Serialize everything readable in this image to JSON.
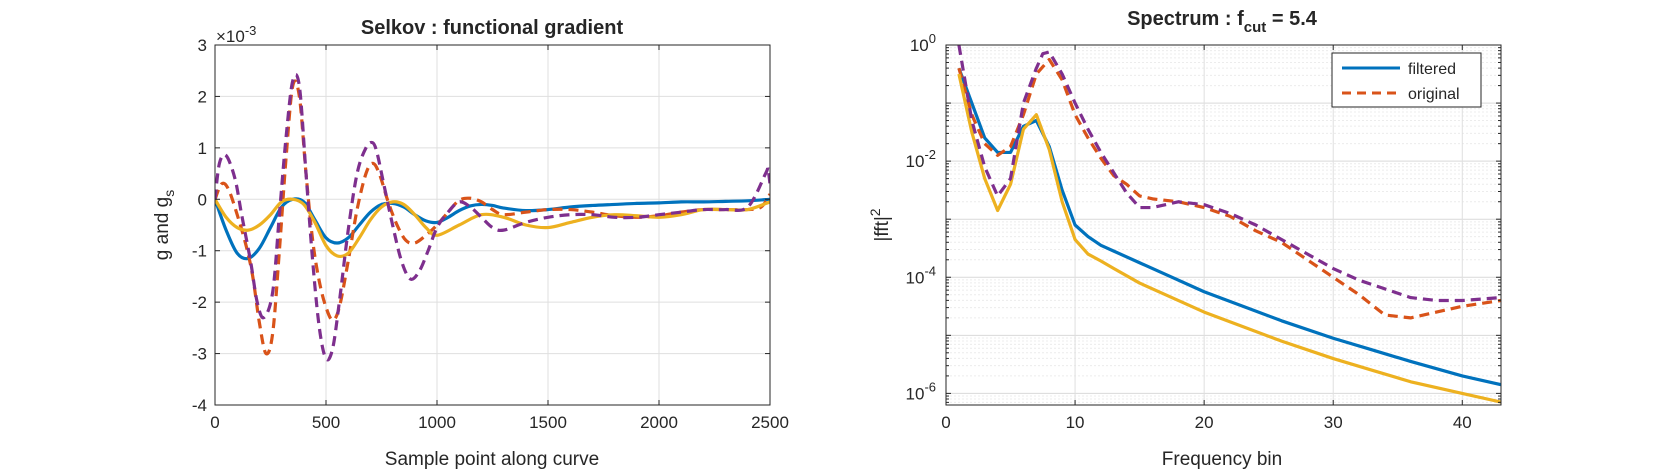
{
  "chart_data": [
    {
      "type": "line",
      "title": "Selkov : functional gradient",
      "xlabel": "Sample point along curve",
      "ylabel_main": "g and g",
      "ylabel_sub": "s",
      "y_exponent_prefix": "×10",
      "y_exponent": "-3",
      "xlim": [
        0,
        2500
      ],
      "ylim": [
        -4,
        3
      ],
      "xticks": [
        0,
        500,
        1000,
        1500,
        2000,
        2500
      ],
      "yticks": [
        -4,
        -3,
        -2,
        -1,
        0,
        1,
        2,
        3
      ],
      "xtick_labels": [
        "0",
        "500",
        "1000",
        "1500",
        "2000",
        "2500"
      ],
      "ytick_labels": [
        "-4",
        "-3",
        "-2",
        "-1",
        "0",
        "1",
        "2",
        "3"
      ],
      "grid": true,
      "series": [
        {
          "color": "#0072BD",
          "style": "solid",
          "x": [
            0,
            50,
            100,
            150,
            200,
            250,
            300,
            350,
            400,
            450,
            500,
            550,
            600,
            650,
            700,
            750,
            800,
            850,
            900,
            950,
            1000,
            1050,
            1100,
            1150,
            1200,
            1250,
            1300,
            1400,
            1500,
            1600,
            1700,
            1800,
            1900,
            2000,
            2100,
            2200,
            2300,
            2400,
            2500
          ],
          "y": [
            0,
            -0.6,
            -1.05,
            -1.15,
            -0.95,
            -0.55,
            -0.15,
            0,
            -0.05,
            -0.4,
            -0.75,
            -0.85,
            -0.75,
            -0.5,
            -0.25,
            -0.1,
            -0.08,
            -0.15,
            -0.3,
            -0.42,
            -0.45,
            -0.35,
            -0.22,
            -0.13,
            -0.1,
            -0.12,
            -0.17,
            -0.22,
            -0.2,
            -0.15,
            -0.12,
            -0.1,
            -0.08,
            -0.07,
            -0.05,
            -0.05,
            -0.04,
            -0.03,
            0
          ]
        },
        {
          "color": "#D95319",
          "style": "dashed",
          "x": [
            0,
            30,
            60,
            100,
            140,
            170,
            200,
            230,
            260,
            290,
            320,
            350,
            380,
            410,
            440,
            470,
            500,
            530,
            560,
            600,
            640,
            680,
            710,
            740,
            780,
            820,
            860,
            900,
            950,
            1000,
            1050,
            1100,
            1150,
            1200,
            1250,
            1300,
            1400,
            1500,
            1600,
            1700,
            1800,
            1900,
            2000,
            2100,
            2200,
            2300,
            2400,
            2460,
            2500
          ],
          "y": [
            0,
            0.3,
            0.2,
            -0.3,
            -0.9,
            -1.5,
            -2.4,
            -3.0,
            -2.6,
            -1.0,
            0.8,
            2.2,
            2.0,
            0.5,
            -0.8,
            -1.6,
            -2.1,
            -2.35,
            -2.1,
            -1.2,
            -0.2,
            0.5,
            0.7,
            0.5,
            -0.05,
            -0.5,
            -0.8,
            -0.85,
            -0.7,
            -0.5,
            -0.25,
            -0.02,
            0.02,
            -0.05,
            -0.2,
            -0.3,
            -0.25,
            -0.2,
            -0.2,
            -0.25,
            -0.32,
            -0.35,
            -0.32,
            -0.25,
            -0.2,
            -0.2,
            -0.2,
            -0.15,
            0.1
          ]
        },
        {
          "color": "#EDB120",
          "style": "solid",
          "x": [
            0,
            50,
            100,
            150,
            200,
            250,
            300,
            350,
            400,
            450,
            500,
            550,
            600,
            650,
            700,
            750,
            800,
            850,
            900,
            950,
            1000,
            1100,
            1200,
            1300,
            1400,
            1500,
            1600,
            1700,
            1800,
            1900,
            2000,
            2100,
            2200,
            2300,
            2400,
            2500
          ],
          "y": [
            0,
            -0.35,
            -0.55,
            -0.6,
            -0.5,
            -0.3,
            -0.05,
            0,
            -0.1,
            -0.45,
            -0.9,
            -1.1,
            -1.05,
            -0.75,
            -0.4,
            -0.15,
            -0.05,
            -0.1,
            -0.3,
            -0.55,
            -0.7,
            -0.5,
            -0.3,
            -0.35,
            -0.5,
            -0.55,
            -0.45,
            -0.35,
            -0.3,
            -0.32,
            -0.35,
            -0.3,
            -0.2,
            -0.2,
            -0.2,
            -0.05
          ]
        },
        {
          "color": "#7E2F8E",
          "style": "dashed",
          "x": [
            0,
            20,
            50,
            90,
            120,
            160,
            190,
            220,
            260,
            290,
            320,
            350,
            380,
            410,
            440,
            470,
            500,
            530,
            560,
            600,
            640,
            680,
            710,
            730,
            760,
            800,
            840,
            880,
            920,
            960,
            1000,
            1050,
            1100,
            1150,
            1200,
            1250,
            1300,
            1400,
            1500,
            1600,
            1700,
            1800,
            1900,
            2000,
            2100,
            2200,
            2300,
            2400,
            2480,
            2490,
            2500
          ],
          "y": [
            0,
            0.7,
            0.85,
            0.4,
            -0.3,
            -1.2,
            -2.0,
            -2.3,
            -1.8,
            -0.3,
            1.2,
            2.3,
            2.2,
            0.5,
            -1.2,
            -2.5,
            -3.1,
            -2.9,
            -2.0,
            -0.6,
            0.5,
            1.0,
            1.1,
            0.9,
            0.3,
            -0.5,
            -1.2,
            -1.55,
            -1.4,
            -1.0,
            -0.55,
            -0.25,
            -0.05,
            -0.15,
            -0.35,
            -0.55,
            -0.6,
            -0.45,
            -0.35,
            -0.3,
            -0.3,
            -0.35,
            -0.35,
            -0.3,
            -0.25,
            -0.2,
            -0.2,
            -0.15,
            0.5,
            0.6,
            0.3
          ]
        }
      ]
    },
    {
      "type": "line",
      "title_main": "Spectrum : f",
      "title_sub": "cut",
      "title_tail": " = 5.4",
      "xlabel": "Frequency bin",
      "ylabel_main": "|fft|",
      "ylabel_sup": "2",
      "yscale": "log",
      "xlim": [
        0,
        43
      ],
      "ylim_log10": [
        -6.2,
        0
      ],
      "xticks": [
        0,
        10,
        20,
        30,
        40
      ],
      "xtick_labels": [
        "0",
        "10",
        "20",
        "30",
        "40"
      ],
      "yticks_log10": [
        0,
        -2,
        -4,
        -6
      ],
      "ytick_base": "10",
      "ytick_exponents": [
        "0",
        "-2",
        "-4",
        "-6"
      ],
      "grid": true,
      "legend_position": "top-right",
      "legend": [
        "filtered",
        "original"
      ],
      "series": [
        {
          "name": "filtered",
          "color": "#0072BD",
          "style": "solid",
          "x": [
            1,
            2,
            3,
            4,
            5,
            6,
            7,
            8,
            9,
            10,
            11,
            12,
            13,
            15,
            17,
            20,
            23,
            26,
            30,
            33,
            36,
            40,
            43
          ],
          "log10y": [
            -0.4,
            -1.0,
            -1.6,
            -1.85,
            -1.85,
            -1.4,
            -1.3,
            -1.75,
            -2.5,
            -3.1,
            -3.3,
            -3.45,
            -3.55,
            -3.75,
            -3.95,
            -4.25,
            -4.5,
            -4.75,
            -5.05,
            -5.25,
            -5.45,
            -5.7,
            -5.85
          ]
        },
        {
          "name": "original",
          "color": "#D95319",
          "style": "dashed",
          "x": [
            1,
            2,
            3,
            4,
            5,
            6,
            7,
            8,
            9,
            10,
            11,
            12,
            13,
            14,
            15,
            16,
            18,
            20,
            22,
            24,
            26,
            28,
            30,
            32,
            34,
            36,
            38,
            40,
            43
          ],
          "log10y": [
            -0.4,
            -1.2,
            -1.7,
            -1.9,
            -1.75,
            -1.2,
            -0.5,
            -0.25,
            -0.6,
            -1.2,
            -1.6,
            -1.95,
            -2.25,
            -2.4,
            -2.6,
            -2.65,
            -2.7,
            -2.8,
            -2.95,
            -3.2,
            -3.4,
            -3.7,
            -4.0,
            -4.3,
            -4.65,
            -4.7,
            -4.6,
            -4.5,
            -4.4
          ]
        },
        {
          "name": "",
          "color": "#EDB120",
          "style": "solid",
          "x": [
            1,
            2,
            3,
            4,
            5,
            6,
            7,
            8,
            9,
            10,
            11,
            12,
            13,
            15,
            17,
            20,
            23,
            26,
            30,
            33,
            36,
            40,
            43
          ],
          "log10y": [
            -0.5,
            -1.5,
            -2.3,
            -2.85,
            -2.4,
            -1.45,
            -1.2,
            -1.8,
            -2.7,
            -3.35,
            -3.6,
            -3.72,
            -3.85,
            -4.1,
            -4.3,
            -4.6,
            -4.85,
            -5.1,
            -5.4,
            -5.6,
            -5.8,
            -6.0,
            -6.15
          ]
        },
        {
          "name": "",
          "color": "#7E2F8E",
          "style": "dashed",
          "x": [
            1,
            2,
            3,
            4,
            5,
            6,
            7,
            7.5,
            8,
            9,
            10,
            11,
            12,
            13,
            14,
            15,
            16,
            18,
            20,
            22,
            24,
            26,
            28,
            30,
            32,
            34,
            36,
            38,
            40,
            43
          ],
          "log10y": [
            0,
            -1.3,
            -2.1,
            -2.6,
            -2.3,
            -1.0,
            -0.4,
            -0.15,
            -0.12,
            -0.5,
            -1.0,
            -1.45,
            -1.85,
            -2.2,
            -2.55,
            -2.8,
            -2.8,
            -2.7,
            -2.75,
            -2.9,
            -3.1,
            -3.35,
            -3.6,
            -3.85,
            -4.05,
            -4.2,
            -4.35,
            -4.4,
            -4.4,
            -4.35
          ]
        }
      ]
    }
  ]
}
